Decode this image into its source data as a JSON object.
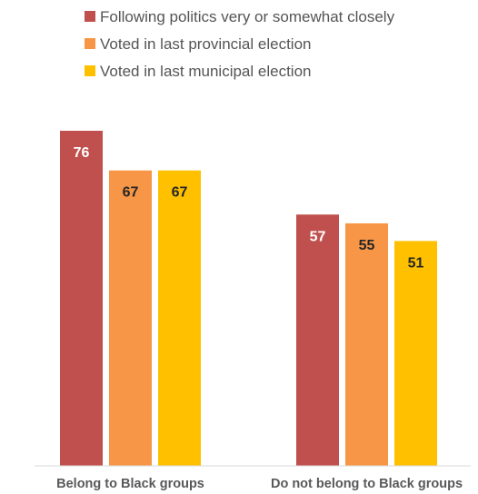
{
  "chart_data": {
    "type": "bar",
    "title": "",
    "xlabel": "",
    "ylabel": "",
    "ylim": [
      0,
      76
    ],
    "grid": false,
    "legend_position": "top",
    "categories": [
      "Belong to Black groups",
      "Do not belong to Black groups"
    ],
    "series": [
      {
        "name": "Following politics very or somewhat closely",
        "values": [
          76,
          57
        ],
        "color": "#c0504d",
        "label_color": "#ffffff"
      },
      {
        "name": "Voted in last provincial election",
        "values": [
          67,
          55
        ],
        "color": "#f79646",
        "label_color": "#262626"
      },
      {
        "name": "Voted in last municipal election",
        "values": [
          67,
          51
        ],
        "color": "#ffc000",
        "label_color": "#262626"
      }
    ]
  }
}
